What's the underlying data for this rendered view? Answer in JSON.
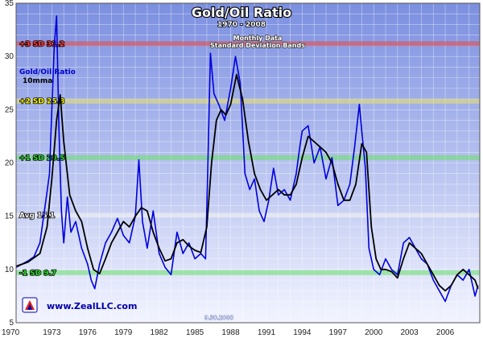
{
  "colors": {
    "background_top": "#7b8fe0",
    "background_bottom": "#f2f4ff",
    "ratio_line": "#0000dd",
    "average_line": "#000000",
    "band_plus3": "#e05050",
    "band_plus2": "#e8e070",
    "band_plus1": "#70e070",
    "band_avg": "#f0f0f0",
    "band_minus1": "#70e070",
    "label_plus3": "#ff4040",
    "label_plus2": "#ffff00",
    "label_plus1": "#33dd33",
    "label_avg": "#ffffff",
    "label_minus1": "#33dd33"
  },
  "logo": {
    "icon": "zeal-logo-icon",
    "text": "www.ZealLLC.com"
  },
  "date_stamp": "9.30.2008",
  "chart_data": {
    "type": "line",
    "title": "Gold/Oil Ratio",
    "subtitle": "1970 - 2008",
    "notes": [
      "Monthly Data",
      "Standard Deviation Bands"
    ],
    "legend": [
      {
        "name": "Gold/Oil Ratio",
        "color": "#0000dd"
      },
      {
        "name": "10mma",
        "color": "#000000"
      }
    ],
    "legend_position": "top-left",
    "grid": true,
    "xlim": [
      1970,
      2008.9
    ],
    "ylim": [
      5,
      35
    ],
    "x_ticks": [
      1970,
      1973,
      1976,
      1979,
      1982,
      1985,
      1988,
      1991,
      1994,
      1997,
      2000,
      2003,
      2006
    ],
    "y_ticks": [
      5,
      10,
      15,
      20,
      25,
      30,
      35
    ],
    "bands": [
      {
        "label": "+3 SD",
        "value": 31.2
      },
      {
        "label": "+2 SD",
        "value": 25.8
      },
      {
        "label": "+1 SD",
        "value": 20.5
      },
      {
        "label": "Avg",
        "value": 15.1
      },
      {
        "label": "-1 SD",
        "value": 9.7
      }
    ],
    "series": [
      {
        "name": "Gold/Oil Ratio",
        "x": [
          1970.0,
          1970.5,
          1971.0,
          1971.5,
          1972.0,
          1972.5,
          1972.8,
          1973.0,
          1973.2,
          1973.4,
          1973.6,
          1973.8,
          1974.0,
          1974.3,
          1974.6,
          1975.0,
          1975.5,
          1976.0,
          1976.3,
          1976.6,
          1977.0,
          1977.5,
          1978.0,
          1978.5,
          1979.0,
          1979.5,
          1980.0,
          1980.3,
          1980.6,
          1981.0,
          1981.5,
          1982.0,
          1982.5,
          1983.0,
          1983.5,
          1984.0,
          1984.5,
          1985.0,
          1985.5,
          1985.9,
          1986.1,
          1986.3,
          1986.6,
          1987.0,
          1987.5,
          1988.0,
          1988.4,
          1988.8,
          1989.2,
          1989.6,
          1990.0,
          1990.4,
          1990.8,
          1991.2,
          1991.6,
          1992.0,
          1992.5,
          1993.0,
          1993.5,
          1993.8,
          1994.0,
          1994.5,
          1995.0,
          1995.5,
          1996.0,
          1996.5,
          1997.0,
          1997.5,
          1998.0,
          1998.4,
          1998.8,
          1999.0,
          1999.3,
          1999.6,
          2000.0,
          2000.5,
          2001.0,
          2001.5,
          2002.0,
          2002.5,
          2003.0,
          2003.5,
          2004.0,
          2004.5,
          2005.0,
          2005.5,
          2006.0,
          2006.5,
          2007.0,
          2007.5,
          2008.0,
          2008.5,
          2008.75
        ],
        "y": [
          10.2,
          10.5,
          10.8,
          11.2,
          12.5,
          16.5,
          19.0,
          25.0,
          31.0,
          33.8,
          23.0,
          15.5,
          12.5,
          16.8,
          13.5,
          14.5,
          12.0,
          10.5,
          9.0,
          8.2,
          10.5,
          12.5,
          13.5,
          14.8,
          13.2,
          12.5,
          15.0,
          20.3,
          14.5,
          12.0,
          15.5,
          11.5,
          10.2,
          9.5,
          13.5,
          11.5,
          12.5,
          11.0,
          11.5,
          11.0,
          20.5,
          30.3,
          26.5,
          25.5,
          24.0,
          27.0,
          30.0,
          27.5,
          19.0,
          17.5,
          18.5,
          15.5,
          14.5,
          16.5,
          19.5,
          17.0,
          17.5,
          16.5,
          19.0,
          21.5,
          23.0,
          23.5,
          20.0,
          21.5,
          18.5,
          20.5,
          16.0,
          16.5,
          18.0,
          21.5,
          25.5,
          23.0,
          19.5,
          12.0,
          10.0,
          9.5,
          11.0,
          10.0,
          9.5,
          12.5,
          13.0,
          12.0,
          11.0,
          10.5,
          9.0,
          8.0,
          7.0,
          8.5,
          9.5,
          9.0,
          10.0,
          7.5,
          8.5
        ]
      },
      {
        "name": "10mma",
        "x": [
          1970.0,
          1971.0,
          1972.0,
          1972.6,
          1973.0,
          1973.4,
          1973.7,
          1974.0,
          1974.5,
          1975.0,
          1975.5,
          1976.0,
          1976.5,
          1977.0,
          1977.5,
          1978.0,
          1978.5,
          1979.0,
          1979.5,
          1980.0,
          1980.5,
          1981.0,
          1981.5,
          1982.0,
          1982.5,
          1983.0,
          1983.5,
          1984.0,
          1984.5,
          1985.0,
          1985.5,
          1986.0,
          1986.4,
          1986.8,
          1987.2,
          1987.6,
          1988.0,
          1988.5,
          1989.0,
          1989.5,
          1990.0,
          1990.5,
          1991.0,
          1991.5,
          1992.0,
          1992.5,
          1993.0,
          1993.5,
          1994.0,
          1994.5,
          1995.0,
          1995.5,
          1996.0,
          1996.5,
          1997.0,
          1997.5,
          1998.0,
          1998.5,
          1999.0,
          1999.4,
          1999.8,
          2000.2,
          2000.6,
          2001.0,
          2001.5,
          2002.0,
          2002.5,
          2003.0,
          2003.5,
          2004.0,
          2004.5,
          2005.0,
          2005.5,
          2006.0,
          2006.5,
          2007.0,
          2007.5,
          2008.0,
          2008.5,
          2008.75
        ],
        "y": [
          10.3,
          10.7,
          11.5,
          14.0,
          18.5,
          24.0,
          26.4,
          22.0,
          17.0,
          15.5,
          14.5,
          12.0,
          10.0,
          9.6,
          11.0,
          12.5,
          13.5,
          14.5,
          14.0,
          15.0,
          15.8,
          15.5,
          13.5,
          12.0,
          10.8,
          11.0,
          12.5,
          12.8,
          12.2,
          11.8,
          11.6,
          14.0,
          20.0,
          24.0,
          25.0,
          24.5,
          25.5,
          28.3,
          26.0,
          22.0,
          19.0,
          17.5,
          16.5,
          17.0,
          17.5,
          17.0,
          17.0,
          18.0,
          20.5,
          22.5,
          22.0,
          21.5,
          21.0,
          20.0,
          18.0,
          16.5,
          16.5,
          18.0,
          21.8,
          21.0,
          14.0,
          11.0,
          10.0,
          10.0,
          9.8,
          9.2,
          11.0,
          12.5,
          12.0,
          11.5,
          10.5,
          9.5,
          8.5,
          8.0,
          8.5,
          9.5,
          10.0,
          9.5,
          9.0,
          8.2
        ]
      }
    ]
  }
}
